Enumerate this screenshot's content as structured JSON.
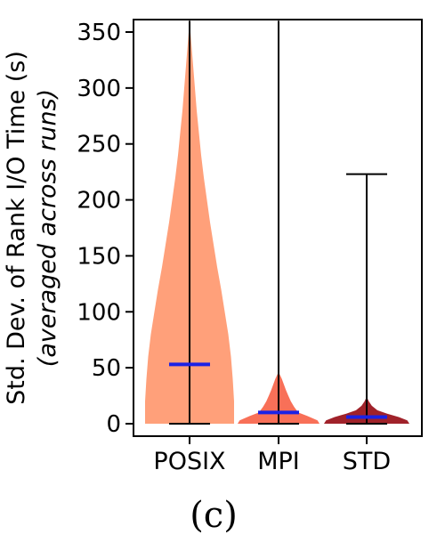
{
  "chart_data": {
    "type": "violin",
    "ylabel_main": "Std. Dev. of Rank I/O Time (s)",
    "ylabel_sub": "(averaged across runs)",
    "ylim": [
      0,
      360
    ],
    "yticks": [
      0,
      50,
      100,
      150,
      200,
      250,
      300,
      350
    ],
    "categories": [
      "POSIX",
      "MPI",
      "STD"
    ],
    "grid": false,
    "series": [
      {
        "category": "POSIX",
        "color": "#FFA07A",
        "min": 0,
        "max": 360,
        "median": 53,
        "density_profile": [
          [
            0,
            1.0
          ],
          [
            20,
            1.0
          ],
          [
            40,
            0.97
          ],
          [
            60,
            0.93
          ],
          [
            80,
            0.87
          ],
          [
            100,
            0.79
          ],
          [
            120,
            0.71
          ],
          [
            140,
            0.62
          ],
          [
            160,
            0.54
          ],
          [
            180,
            0.46
          ],
          [
            200,
            0.39
          ],
          [
            220,
            0.32
          ],
          [
            240,
            0.26
          ],
          [
            260,
            0.21
          ],
          [
            280,
            0.16
          ],
          [
            300,
            0.12
          ],
          [
            320,
            0.08
          ],
          [
            340,
            0.04
          ],
          [
            360,
            0.0
          ]
        ]
      },
      {
        "category": "MPI",
        "color": "#F87058",
        "min": 0,
        "max": 360,
        "median": 10,
        "density_profile": [
          [
            0,
            1.0
          ],
          [
            3,
            0.95
          ],
          [
            7,
            0.7
          ],
          [
            10,
            0.48
          ],
          [
            15,
            0.38
          ],
          [
            20,
            0.3
          ],
          [
            25,
            0.24
          ],
          [
            30,
            0.18
          ],
          [
            35,
            0.13
          ],
          [
            40,
            0.08
          ],
          [
            44,
            0.03
          ],
          [
            46,
            0.0
          ]
        ]
      },
      {
        "category": "STD",
        "color": "#A0222A",
        "min": 0,
        "max": 223,
        "median": 6,
        "density_profile": [
          [
            0,
            1.0
          ],
          [
            3,
            0.95
          ],
          [
            6,
            0.75
          ],
          [
            9,
            0.48
          ],
          [
            12,
            0.25
          ],
          [
            16,
            0.12
          ],
          [
            20,
            0.05
          ],
          [
            24,
            0.0
          ]
        ]
      }
    ],
    "median_color": "#1A22E6",
    "caption": "(c)"
  }
}
